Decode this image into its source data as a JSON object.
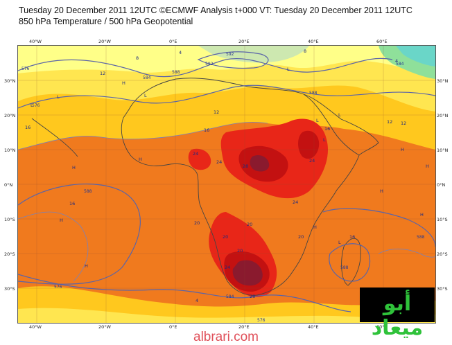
{
  "header": {
    "line1": "Tuesday 20 December 2011 12UTC ©ECMWF Analysis t+000 VT: Tuesday 20 December 2011 12UTC",
    "line2": "850 hPa Temperature / 500 hPa Geopotential"
  },
  "axes": {
    "longitude_ticks": [
      "40°W",
      "20°W",
      "0°E",
      "20°E",
      "40°E",
      "60°E"
    ],
    "latitude_ticks": [
      "30°N",
      "20°N",
      "10°N",
      "0°N",
      "10°S",
      "20°S",
      "30°S"
    ]
  },
  "map": {
    "temperature_labels": [
      "4",
      "8",
      "12",
      "12",
      "16",
      "16",
      "16",
      "16",
      "20",
      "20",
      "20",
      "20",
      "20",
      "24",
      "24",
      "24",
      "28",
      "28",
      "24",
      "24",
      "12",
      "12",
      "16",
      "4",
      "4",
      "8"
    ],
    "geopotential_labels": [
      "576",
      "584",
      "588",
      "592",
      "588",
      "584",
      "576",
      "576",
      "576",
      "584",
      "588",
      "588",
      "588",
      "592"
    ],
    "pressure_markers": [
      "L",
      "L",
      "L",
      "L",
      "L",
      "L",
      "L",
      "H",
      "H",
      "H",
      "H",
      "H",
      "H",
      "H",
      "H",
      "L",
      "H",
      "H"
    ],
    "colors": {
      "band_below_4": "#cde8b0",
      "band_4_8": "#ffff88",
      "band_8_12": "#ffe650",
      "band_12_16": "#ffc81e",
      "band_16_20": "#f07a1e",
      "band_20_24": "#e82618",
      "band_24_28": "#c31111",
      "band_above_28": "#8a1a2e",
      "cold_green": "#8fe09a",
      "cold_cyan": "#6ad6c8",
      "coastline": "#444444",
      "geopotential_contour": "#5a64a8",
      "temperature_contour": "#7a80b8"
    }
  },
  "watermark": "albrari.com",
  "logo_text": "أبو ميعاد"
}
